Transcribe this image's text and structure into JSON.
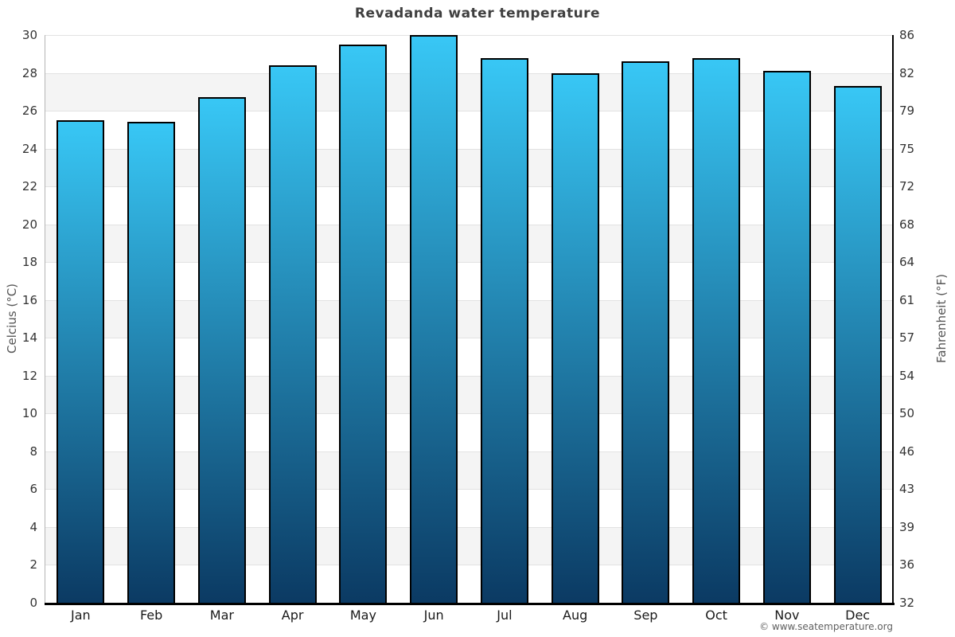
{
  "chart": {
    "title": "Revadanda water temperature",
    "left_axis_title": "Celcius (°C)",
    "right_axis_title": "Fahrenheit (°F)",
    "credits": "© www.seatemperature.org"
  },
  "chart_data": {
    "type": "bar",
    "title": "Revadanda water temperature",
    "categories": [
      "Jan",
      "Feb",
      "Mar",
      "Apr",
      "May",
      "Jun",
      "Jul",
      "Aug",
      "Sep",
      "Oct",
      "Nov",
      "Dec"
    ],
    "values": [
      25.5,
      25.4,
      26.7,
      28.4,
      29.5,
      30.0,
      28.8,
      28.0,
      28.6,
      28.8,
      28.1,
      27.3
    ],
    "series_name": "Water temperature",
    "xlabel": "",
    "ylabel": "Celcius (°C)",
    "ylabel_right": "Fahrenheit (°F)",
    "ylim": [
      0,
      30
    ],
    "ytick_step": 2,
    "yticks_celsius": [
      0,
      2,
      4,
      6,
      8,
      10,
      12,
      14,
      16,
      18,
      20,
      22,
      24,
      26,
      28,
      30
    ],
    "yticks_fahrenheit": [
      "32",
      "36",
      "39",
      "43",
      "46",
      "50",
      "54",
      "57",
      "61",
      "64",
      "68",
      "72",
      "75",
      "79",
      "82",
      "86"
    ],
    "grid": true,
    "alternating_bands": true,
    "legend": "none",
    "colors": {
      "bar_gradient_top": "#38c7f5",
      "bar_gradient_bottom": "#0b3a63",
      "bar_border": "#000000",
      "band_shade": "#f4f4f4",
      "gridline": "#e2e2e2",
      "title_text": "#3f3f3f",
      "axis_title_text": "#555555",
      "tick_text": "#333333"
    }
  }
}
